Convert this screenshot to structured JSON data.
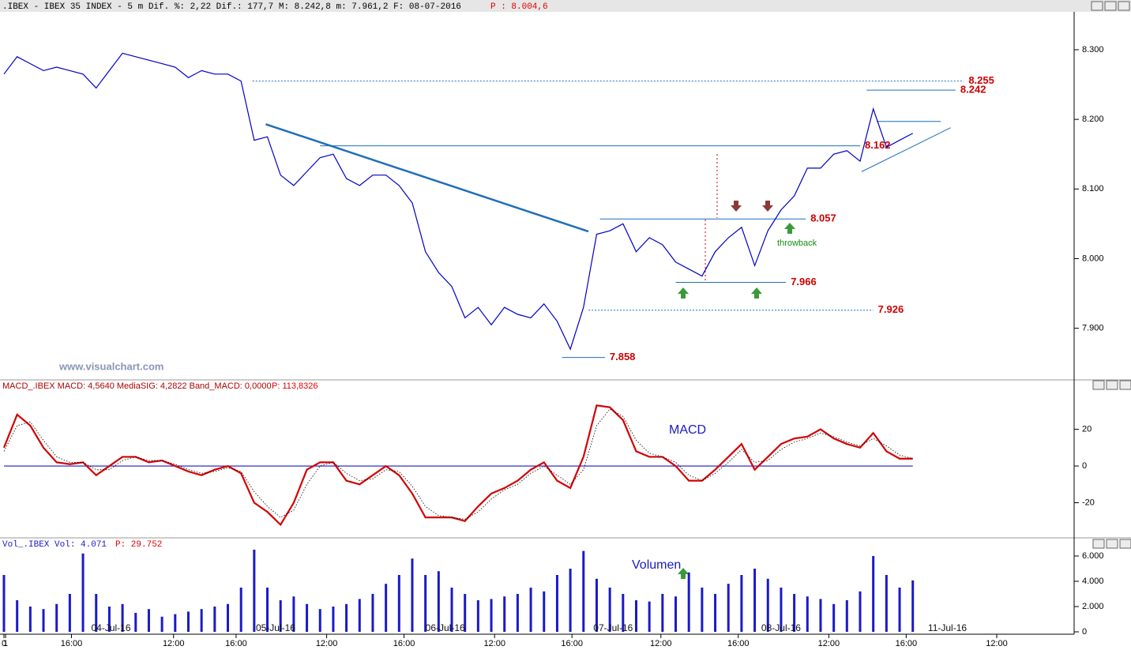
{
  "header": {
    "info": ".IBEX - IBEX 35 INDEX -   5 m Dif. %: 2,22 Dif.: 177,7 M: 8.242,8 m: 7.961,2 F: 08-07-2016",
    "price": "P : 8.004,6"
  },
  "chart_data": [
    {
      "type": "line",
      "xlim": [
        0,
        650
      ],
      "ylim": [
        7.827,
        8.351
      ],
      "yticks": [
        {
          "value": 7.9,
          "label": "7.900"
        },
        {
          "value": 8.0,
          "label": "8.000"
        },
        {
          "value": 8.1,
          "label": "8.100"
        },
        {
          "value": 8.2,
          "label": "8.200"
        },
        {
          "value": 8.3,
          "label": "8.300"
        }
      ],
      "x": [
        0,
        8,
        16,
        24,
        32,
        40,
        48,
        56,
        64,
        72,
        80,
        88,
        96,
        104,
        112,
        120,
        128,
        136,
        144,
        152,
        160,
        168,
        176,
        184,
        192,
        200,
        208,
        216,
        224,
        232,
        240,
        248,
        256,
        264,
        272,
        280,
        288,
        296,
        304,
        312,
        320,
        328,
        336,
        344,
        352,
        360,
        368,
        376,
        384,
        392,
        400,
        408,
        416,
        424,
        432,
        440,
        448,
        456,
        464,
        472,
        480,
        488,
        496,
        504,
        512,
        520,
        528,
        536,
        544,
        552
      ],
      "series": [
        {
          "color": "#0000c8",
          "values": [
            8.265,
            8.29,
            8.28,
            8.27,
            8.275,
            8.27,
            8.265,
            8.245,
            8.27,
            8.295,
            8.29,
            8.285,
            8.28,
            8.275,
            8.26,
            8.27,
            8.265,
            8.265,
            8.255,
            8.17,
            8.175,
            8.12,
            8.105,
            8.125,
            8.145,
            8.15,
            8.115,
            8.105,
            8.12,
            8.12,
            8.105,
            8.08,
            8.01,
            7.98,
            7.96,
            7.915,
            7.93,
            7.905,
            7.93,
            7.92,
            7.915,
            7.935,
            7.91,
            7.87,
            7.93,
            8.035,
            8.04,
            8.05,
            8.01,
            8.03,
            8.02,
            7.995,
            7.985,
            7.975,
            8.01,
            8.03,
            8.045,
            7.99,
            8.04,
            8.07,
            8.09,
            8.13,
            8.13,
            8.15,
            8.155,
            8.14,
            8.215,
            8.16,
            8.17,
            8.18
          ]
        }
      ],
      "level_color": "#1f6fb8",
      "label_color": "#cc0000",
      "levels": [
        {
          "value": 8.255,
          "x": [
            151,
            583
          ],
          "style": "dotted"
        },
        {
          "value": 8.242,
          "x": [
            524,
            578
          ],
          "style": "solid"
        },
        {
          "value": 8.162,
          "x": [
            192,
            520
          ],
          "style": "solid"
        },
        {
          "value": 8.057,
          "x": [
            362,
            487
          ],
          "style": "solid"
        },
        {
          "value": 7.966,
          "x": [
            408,
            475
          ],
          "style": "solid"
        },
        {
          "value": 7.926,
          "x": [
            355,
            528
          ],
          "style": "dotted"
        },
        {
          "value": 7.858,
          "x": [
            339,
            365
          ],
          "style": "solid"
        }
      ],
      "trendlines": [
        {
          "x": [
            159,
            355
          ],
          "y": [
            8.193,
            8.039
          ],
          "width": 2.5
        },
        {
          "x": [
            530,
            569
          ],
          "y": [
            8.197,
            8.197
          ],
          "width": 1
        },
        {
          "x": [
            521,
            575
          ],
          "y": [
            8.125,
            8.188
          ],
          "width": 1
        }
      ],
      "annotations": [
        "throwback",
        "www.visualchart.com"
      ]
    },
    {
      "type": "line",
      "header": "MACD_.IBEX MACD: 4,5640 MediaSIG: 4,2822 Band_MACD: 0,0000",
      "header_price": "P: 113,8326",
      "title": "MACD",
      "xlim": [
        0,
        650
      ],
      "ylim": [
        -38.7,
        39.6
      ],
      "yticks": [
        -20,
        0,
        20
      ],
      "reference_line": 0,
      "x": [
        0,
        8,
        16,
        24,
        32,
        40,
        48,
        56,
        64,
        72,
        80,
        88,
        96,
        104,
        112,
        120,
        128,
        136,
        144,
        152,
        160,
        168,
        176,
        184,
        192,
        200,
        208,
        216,
        224,
        232,
        240,
        248,
        256,
        264,
        272,
        280,
        288,
        296,
        304,
        312,
        320,
        328,
        336,
        344,
        352,
        360,
        368,
        376,
        384,
        392,
        400,
        408,
        416,
        424,
        432,
        440,
        448,
        456,
        464,
        472,
        480,
        488,
        496,
        504,
        512,
        520,
        528,
        536,
        544,
        552
      ],
      "series": [
        {
          "color": "#d40000",
          "width": 2.2,
          "values": [
            10,
            28,
            22,
            10,
            2,
            1,
            2,
            -5,
            0,
            5,
            5,
            2,
            3,
            0,
            -3,
            -5,
            -2,
            0,
            -4,
            -20,
            -25,
            -32,
            -20,
            -2,
            2,
            2,
            -8,
            -10,
            -5,
            0,
            -5,
            -15,
            -28,
            -28,
            -28,
            -30,
            -22,
            -15,
            -12,
            -8,
            -2,
            2,
            -8,
            -12,
            5,
            33,
            32,
            25,
            8,
            5,
            5,
            0,
            -8,
            -8,
            -2,
            5,
            12,
            -2,
            5,
            12,
            15,
            16,
            20,
            15,
            12,
            10,
            18,
            8,
            4,
            4
          ]
        },
        {
          "color": "#000000",
          "width": 0.8,
          "style": "dotted",
          "values": [
            8,
            22,
            24,
            14,
            5,
            2,
            2,
            -2,
            -2,
            3,
            5,
            3,
            3,
            1,
            -2,
            -4,
            -3,
            -1,
            -3,
            -14,
            -22,
            -28,
            -24,
            -10,
            0,
            2,
            -4,
            -8,
            -7,
            -2,
            -3,
            -11,
            -22,
            -27,
            -28,
            -29,
            -25,
            -18,
            -13,
            -10,
            -4,
            0,
            -5,
            -10,
            -2,
            22,
            31,
            27,
            14,
            7,
            5,
            2,
            -5,
            -8,
            -4,
            2,
            9,
            2,
            3,
            9,
            13,
            15,
            18,
            16,
            13,
            11,
            15,
            11,
            6,
            4
          ]
        }
      ]
    },
    {
      "type": "bar",
      "header": "Vol_.IBEX Vol: 4.071",
      "header_price": "P: 29.752",
      "title": "Volumen",
      "color": "#1a1ac8",
      "xlim": [
        0,
        650
      ],
      "ylim": [
        0,
        6750
      ],
      "yticks": [
        {
          "value": 0,
          "label": "0"
        },
        {
          "value": 2000,
          "label": "2.000"
        },
        {
          "value": 4000,
          "label": "4.000"
        },
        {
          "value": 6000,
          "label": "6.000"
        }
      ],
      "xticks": [
        0,
        {
          "value": 41,
          "label": "16:00"
        },
        {
          "value": 103,
          "label": "12:00"
        },
        {
          "value": 141,
          "label": "16:00"
        },
        {
          "value": 196,
          "label": "12:00"
        },
        {
          "value": 243,
          "label": "16:00"
        },
        {
          "value": 298,
          "label": "12:00"
        },
        {
          "value": 345,
          "label": "16:00"
        },
        {
          "value": 399,
          "label": "12:00"
        },
        {
          "value": 446,
          "label": "16:00"
        },
        {
          "value": 501,
          "label": "12:00"
        },
        {
          "value": 548,
          "label": "16:00"
        },
        {
          "value": 603,
          "label": "12:00"
        },
        1
      ],
      "date_labels": [
        {
          "value": 65,
          "label": "04-Jul-16"
        },
        {
          "value": 165,
          "label": "05-Jul-16"
        },
        {
          "value": 268,
          "label": "06-Jul-16"
        },
        {
          "value": 370,
          "label": "07-Jul-16"
        },
        {
          "value": 472,
          "label": "08-Jul-16"
        },
        {
          "value": 573,
          "label": "11-Jul-16"
        }
      ],
      "x": [
        0,
        8,
        16,
        24,
        32,
        40,
        48,
        56,
        64,
        72,
        80,
        88,
        96,
        104,
        112,
        120,
        128,
        136,
        144,
        152,
        160,
        168,
        176,
        184,
        192,
        200,
        208,
        216,
        224,
        232,
        240,
        248,
        256,
        264,
        272,
        280,
        288,
        296,
        304,
        312,
        320,
        328,
        336,
        344,
        352,
        360,
        368,
        376,
        384,
        392,
        400,
        408,
        416,
        424,
        432,
        440,
        448,
        456,
        464,
        472,
        480,
        488,
        496,
        504,
        512,
        520,
        528,
        536,
        544,
        552
      ],
      "values": [
        4500,
        2500,
        2000,
        1800,
        2200,
        3000,
        6200,
        3000,
        2000,
        2200,
        1500,
        1800,
        1200,
        1400,
        1600,
        1800,
        2000,
        2200,
        3500,
        6500,
        3500,
        2500,
        2800,
        2200,
        1800,
        2000,
        2200,
        2600,
        3000,
        3800,
        4500,
        5800,
        4500,
        4800,
        3500,
        3000,
        2500,
        2600,
        2800,
        3000,
        3500,
        3200,
        4500,
        5000,
        6400,
        4200,
        3500,
        3000,
        2500,
        2400,
        3000,
        2800,
        4700,
        3500,
        3000,
        3800,
        4500,
        5000,
        4200,
        3500,
        3000,
        2800,
        2600,
        2200,
        2500,
        3200,
        6000,
        4500,
        3500,
        4071
      ]
    }
  ]
}
